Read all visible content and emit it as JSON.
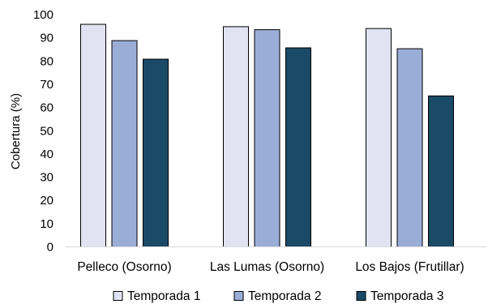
{
  "chart_data": {
    "type": "bar",
    "title": "",
    "xlabel": "",
    "ylabel": "Cobertura (%)",
    "ylim": [
      0,
      100
    ],
    "yticks": [
      0,
      10,
      20,
      30,
      40,
      50,
      60,
      70,
      80,
      90,
      100
    ],
    "grid": false,
    "legend_position": "bottom",
    "categories": [
      "Pelleco (Osorno)",
      "Las Lumas (Osorno)",
      "Los Bajos (Frutillar)"
    ],
    "series": [
      {
        "name": "Temporada 1",
        "color": "#e1e3f2",
        "values": [
          95.8,
          94.8,
          94.0
        ]
      },
      {
        "name": "Temporada 2",
        "color": "#9aadd6",
        "values": [
          88.8,
          93.5,
          85.3
        ]
      },
      {
        "name": "Temporada 3",
        "color": "#1a4a66",
        "values": [
          80.8,
          85.7,
          65.0
        ]
      }
    ]
  }
}
